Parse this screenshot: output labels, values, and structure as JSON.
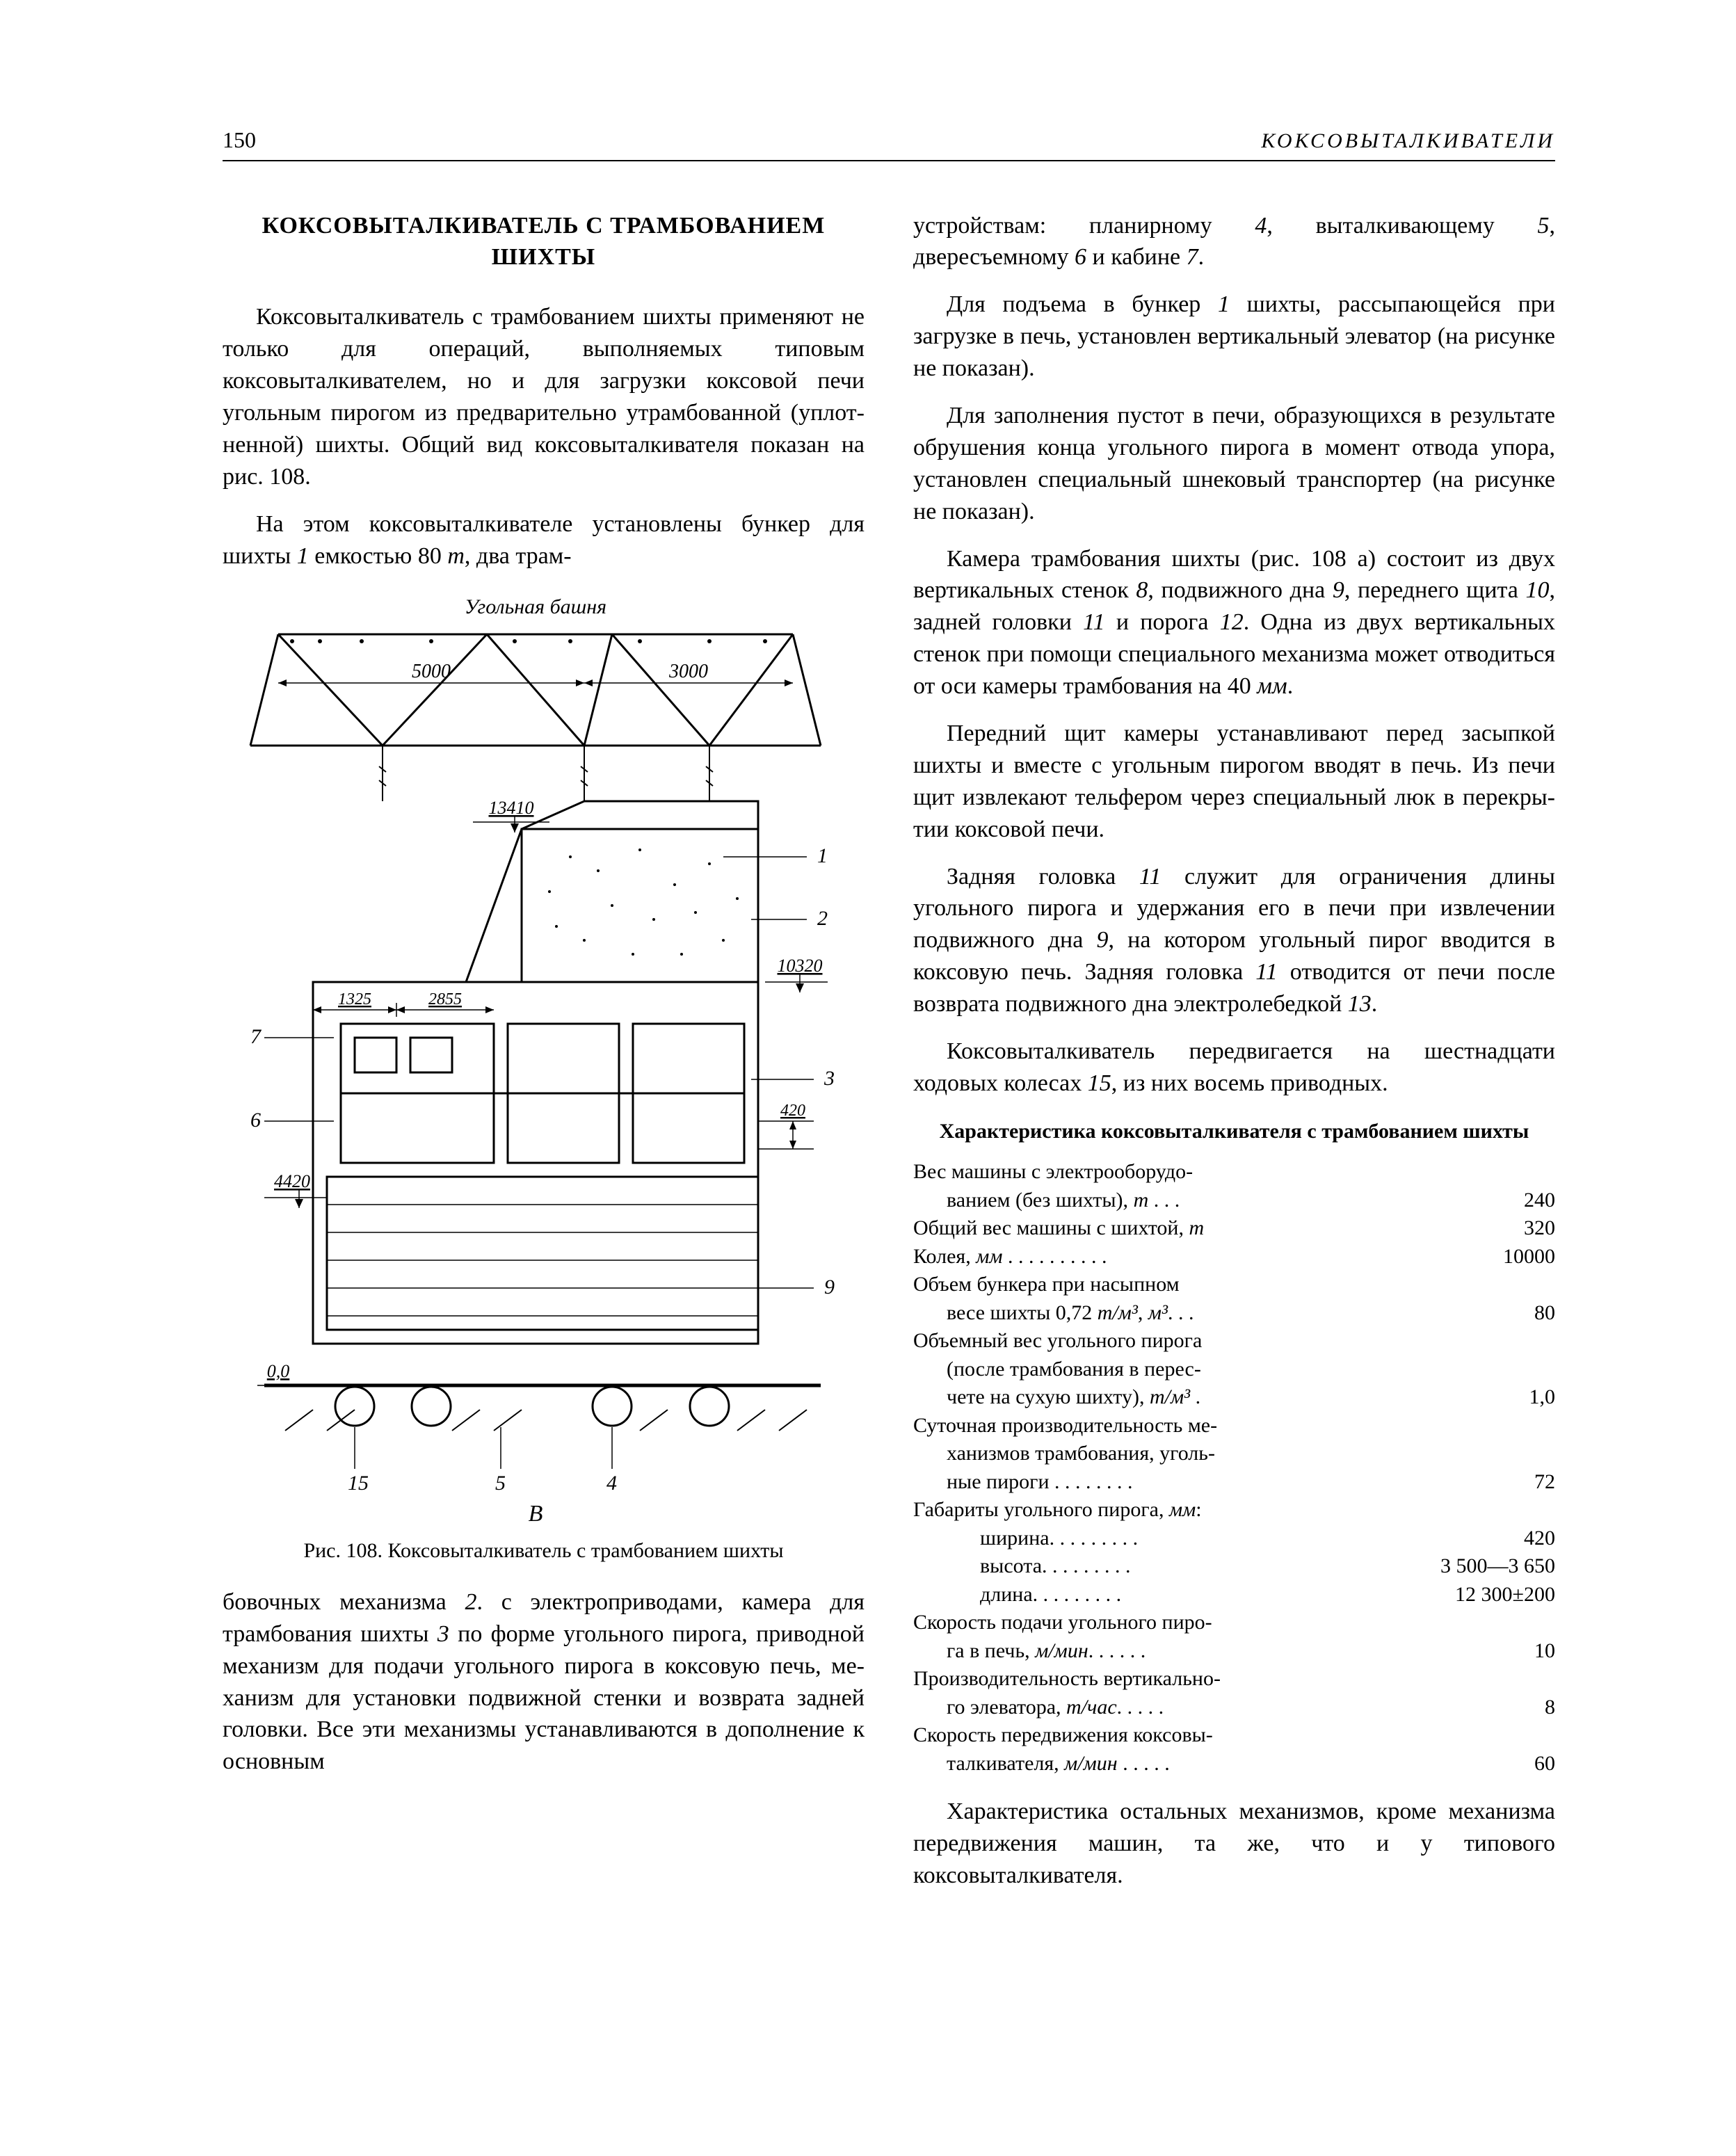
{
  "header": {
    "page_number": "150",
    "running_head": "КОКСОВЫТАЛКИВАТЕЛИ"
  },
  "left": {
    "section_title": "КОКСОВЫТАЛКИВАТЕЛЬ С ТРАМБОВАНИЕМ ШИХТЫ",
    "p1": "Коксовыталкиватель с трамбованием ших­ты применяют не только для операций, вы­полняемых типовым коксовыталкивателем, но и для загрузки коксовой печи угольным пиро­гом из предварительно утрамбованной (уплот­ненной) шихты. Общий вид коксовыталкива­теля показан на рис. 108.",
    "p2_a": "На этом коксовыталкивателе установлены бункер для шихты ",
    "p2_num1": "1",
    "p2_b": " емкостью 80 ",
    "p2_unit": "т",
    "p2_c": ", два трам-",
    "fig_caption": "Рис. 108. Коксовыталкиватель с трамбованием шихты",
    "p3_a": "бовочных механизма ",
    "p3_n2": "2",
    "p3_b": ". с электроприводами, камера для трамбования шихты ",
    "p3_n3": "3",
    "p3_c": " по форме угольного пирога, приводной механизм для подачи угольного пирога в коксовую печь, ме­ханизм для установки подвижной стенки и возврата задней головки. Все эти механизмы устанавливаются в дополнение к основным",
    "figure": {
      "top_label": "Угольная башня",
      "dim_5000": "5000",
      "dim_3000": "3000",
      "dim_13410": "13410",
      "dim_10320": "10320",
      "dim_1325": "1325",
      "dim_2855": "2855",
      "dim_4420": "4420",
      "dim_420": "420",
      "dim_00": "0,0",
      "n1": "1",
      "n2": "2",
      "n3": "3",
      "n4": "4",
      "n5": "5",
      "n6": "6",
      "n7": "7",
      "n9": "9",
      "n15": "15",
      "label_B": "В"
    }
  },
  "right": {
    "p1_a": "устройствам: планирному ",
    "p1_n4": "4",
    "p1_b": ", выталкивающему ",
    "p1_n5": "5",
    "p1_c": ", двересъемному ",
    "p1_n6": "6",
    "p1_d": " и кабине ",
    "p1_n7": "7",
    "p1_e": ".",
    "p2_a": "Для подъема в бункер ",
    "p2_n1": "1",
    "p2_b": " шихты, рассыпаю­щейся при загрузке в печь, установлен верти­кальный элеватор (на рисунке не показан).",
    "p3": "Для заполнения пустот в печи, образующих­ся в результате обрушения конца угольного пирога в момент отвода упора, установлен специальный шнековый транспортер (на ри­сунке не показан).",
    "p4_a": "Камера трамбования шихты (рис. 108 а) со­стоит из двух вертикальных стенок ",
    "p4_n8": "8",
    "p4_b": ", подвиж­ного дна ",
    "p4_n9": "9",
    "p4_c": ", переднего щита ",
    "p4_n10": "10",
    "p4_d": ", задней голов­ки ",
    "p4_n11": "11",
    "p4_e": " и порога ",
    "p4_n12": "12",
    "p4_f": ". Одна из двух вертикальных стенок при помощи специального механизма может отводиться от оси камеры трамбования на 40 ",
    "p4_unit": "мм",
    "p4_g": ".",
    "p5": "Передний щит камеры устанавливают пе­ред засыпкой шихты и вместе с угольным пи­рогом вводят в печь. Из печи щит извлекают тельфером через специальный люк в перекры­тии коксовой печи.",
    "p6_a": "Задняя головка ",
    "p6_n11a": "11",
    "p6_b": " служит для ограничения длины угольного пирога и удержания его в печи при извлечении подвижного дна ",
    "p6_n9a": "9",
    "p6_c": ", на ко­тором угольный пирог вводится в коксовую печь. Задняя головка ",
    "p6_n11b": "11",
    "p6_d": " отводится от печи после возврата подвижного дна электролебед­кой ",
    "p6_n13": "13",
    "p6_e": ".",
    "p7_a": "Коксовыталкиватель передвигается на шест­надцати ходовых колесах ",
    "p7_n15": "15",
    "p7_b": ", из них восемь приводных.",
    "spec_title": "Характеристика коксовыталкивателя с трамбованием шихты",
    "specs": [
      {
        "label": "Вес машины с электрооборудо-<br><span class='indent'>ванием (без шихты), <span class='it'>т</span> . . .</span>",
        "value": "240"
      },
      {
        "label": "Общий вес машины с шихтой, <span class='it'>т</span>",
        "value": "320"
      },
      {
        "label": "Колея, <span class='it'>мм</span> . . . . . . . . . .",
        "value": "10000"
      },
      {
        "label": "Объем бункера при насыпном<br><span class='indent'>весе шихты 0,72 <span class='it'>т/м³</span>, <span class='it'>м³</span>. . .</span>",
        "value": "80"
      },
      {
        "label": "Объемный вес угольного пирога<br><span class='indent'>(после трамбования в перес-</span><br><span class='indent'>чете на сухую шихту), <span class='it'>т/м³</span> .</span>",
        "value": "1,0"
      },
      {
        "label": "Суточная производительность ме-<br><span class='indent'>ханизмов трамбования, уголь-</span><br><span class='indent'>ные пироги . . . . . . . .</span>",
        "value": "72"
      },
      {
        "label": "Габариты угольного пирога, <span class='it'>мм</span>:",
        "value": ""
      },
      {
        "label": "<span class='indent2'>ширина. . . . . . . . .</span>",
        "value": "420"
      },
      {
        "label": "<span class='indent2'>высота. . . . . . . . .</span>",
        "value": "3 500—3 650"
      },
      {
        "label": "<span class='indent2'>длина. . . . . . . . .</span>",
        "value": "12 300±200"
      },
      {
        "label": "Скорость подачи угольного пиро-<br><span class='indent'>га в печь, <span class='it'>м/мин</span>. . . . . .</span>",
        "value": "10"
      },
      {
        "label": "Производительность вертикально-<br><span class='indent'>го элеватора, <span class='it'>т/час</span>. . . . .</span>",
        "value": "8"
      },
      {
        "label": "Скорость передвижения коксовы-<br><span class='indent'>талкивателя, <span class='it'>м/мин</span> . . . . .</span>",
        "value": "60"
      }
    ],
    "p8": "Характеристика остальных механизмов, кроме механизма передвижения машин, та же, что и у типового коксовыталкивателя."
  }
}
